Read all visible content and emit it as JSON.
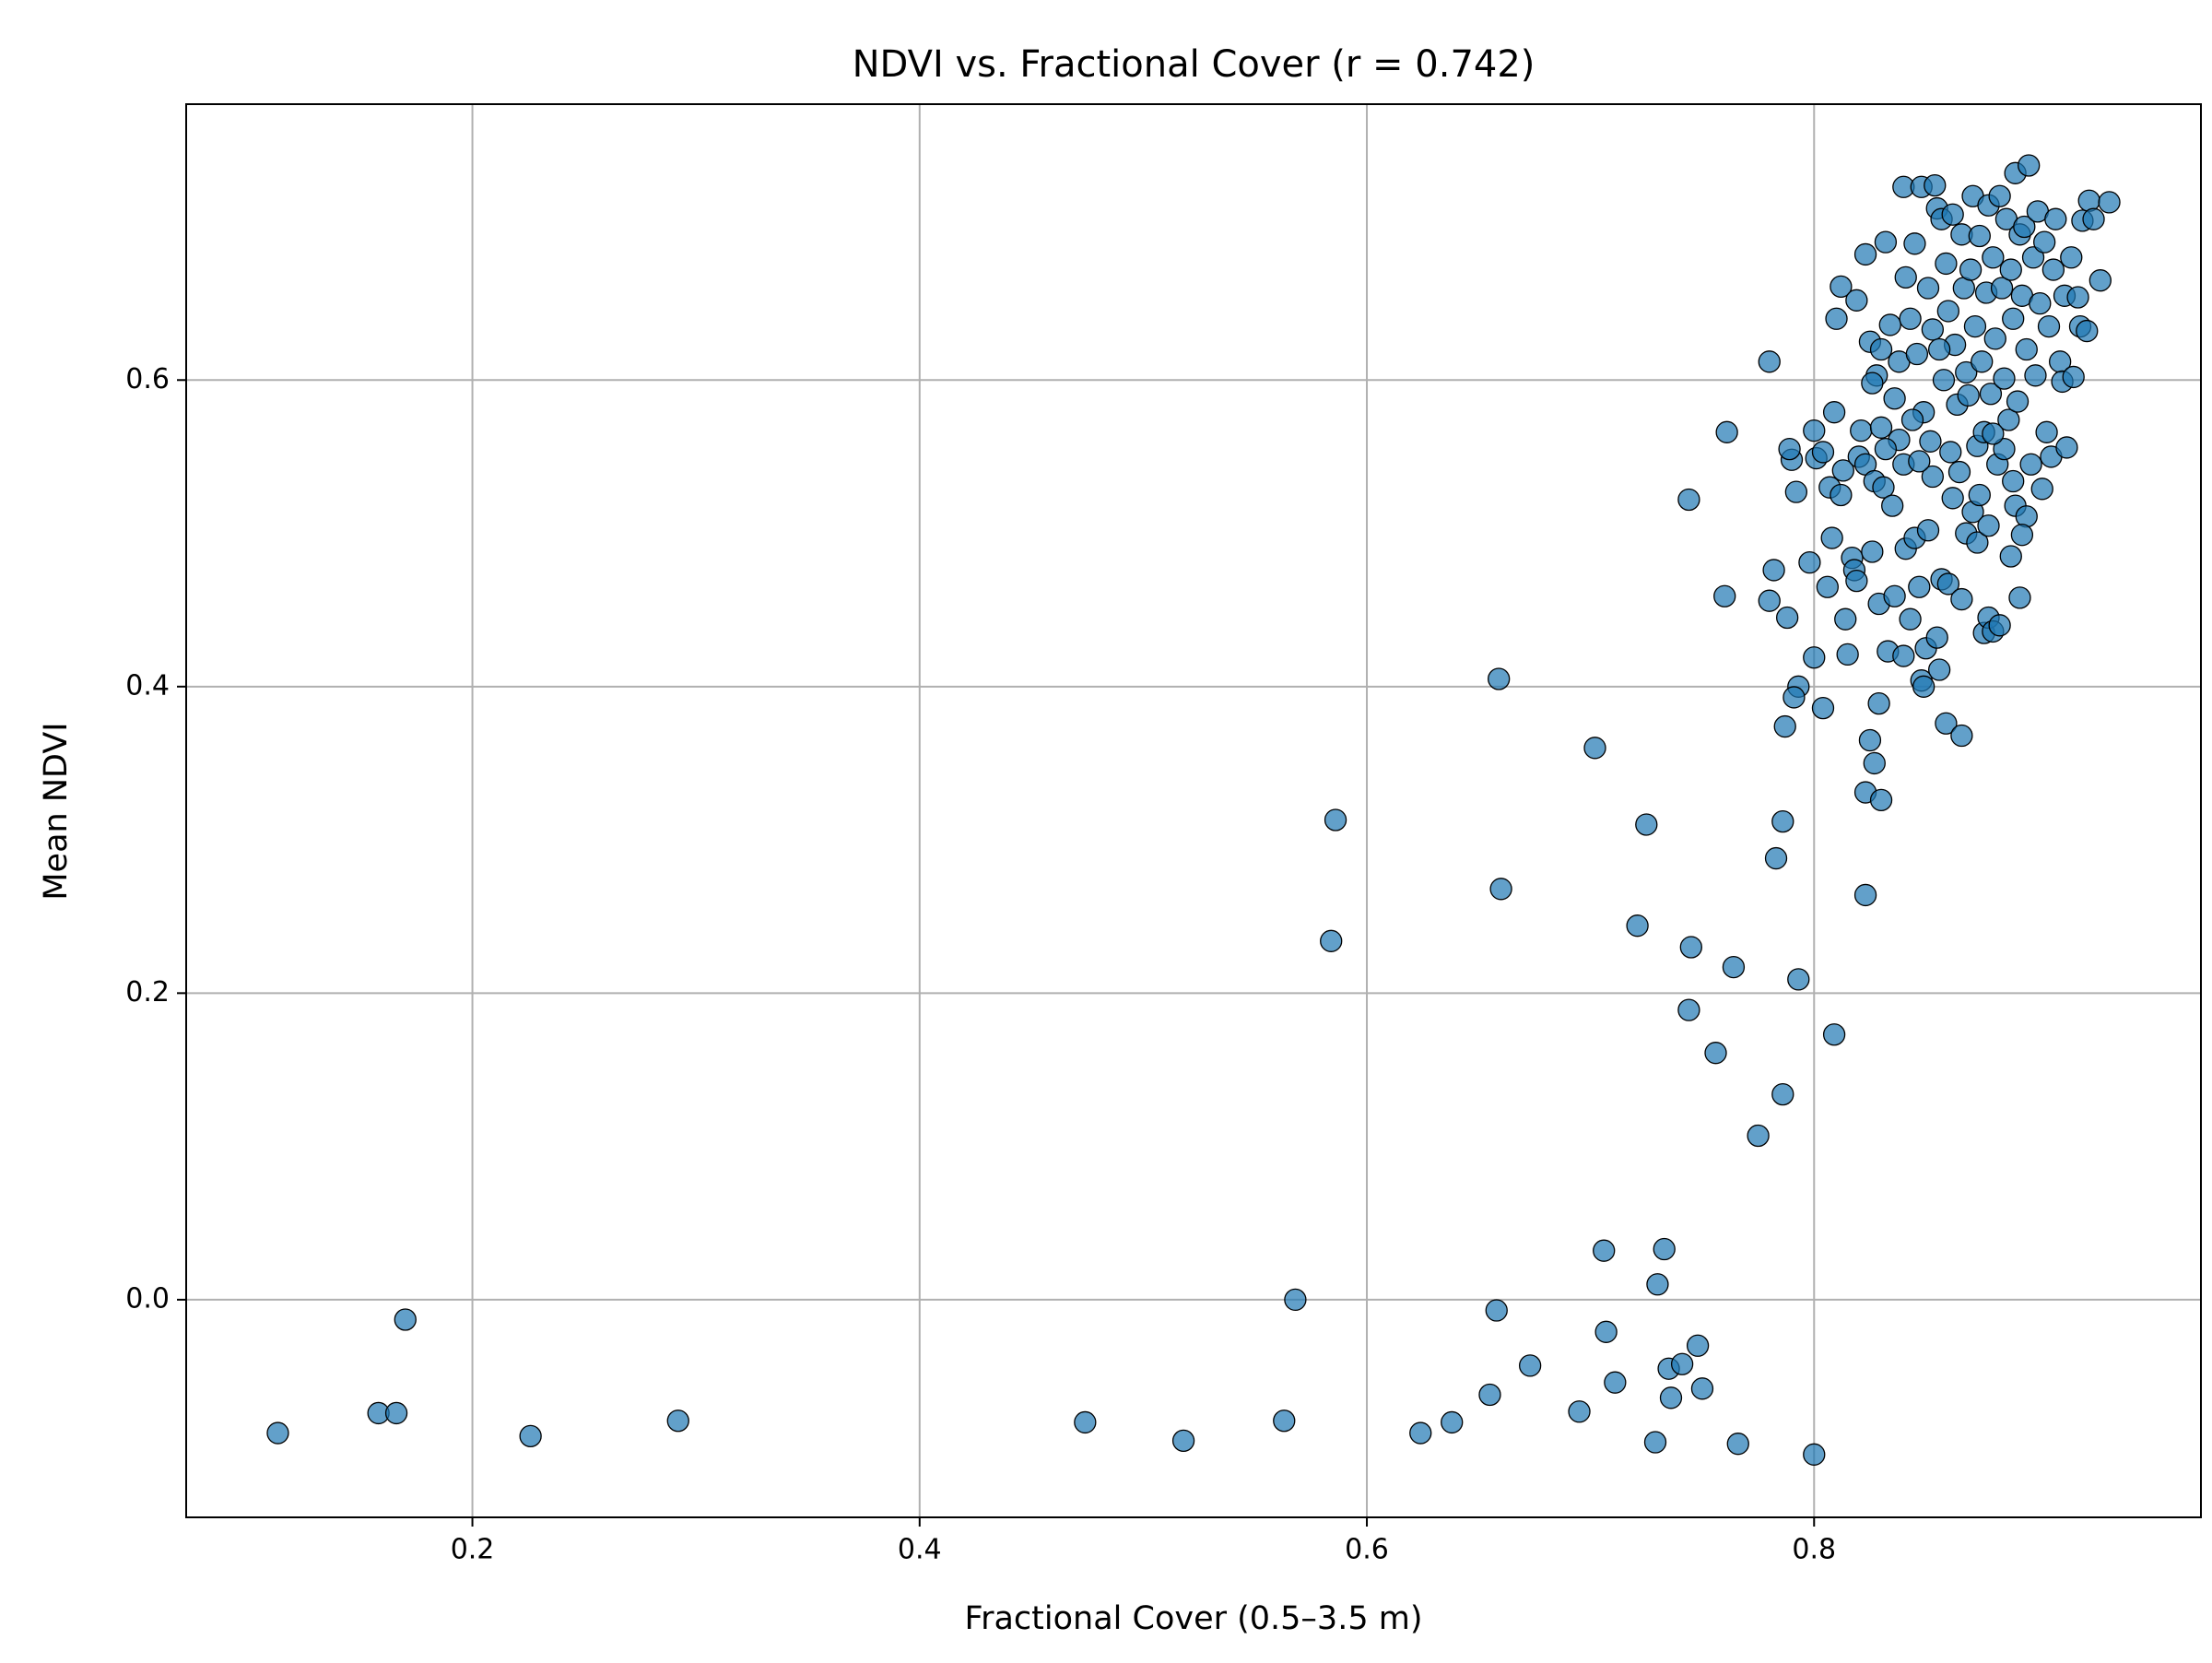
{
  "chart_data": {
    "type": "scatter",
    "title": "NDVI vs. Fractional Cover (r = 0.742)",
    "x_label": "Fractional Cover (0.5–3.5 m)",
    "y_label": "Mean NDVI",
    "color": "#1f77b4",
    "edge_color": "#000000",
    "grid": true,
    "xlim": [
      0.072,
      0.973
    ],
    "ylim": [
      -0.142,
      0.78
    ],
    "xticks": [
      0.2,
      0.4,
      0.6,
      0.8
    ],
    "yticks": [
      {
        "value": 0,
        "label": "0.0"
      },
      0.2,
      0.4,
      0.6
    ],
    "x": [
      0.113,
      0.158,
      0.166,
      0.17,
      0.226,
      0.292,
      0.474,
      0.518,
      0.563,
      0.568,
      0.584,
      0.586,
      0.624,
      0.638,
      0.655,
      0.658,
      0.659,
      0.66,
      0.673,
      0.695,
      0.702,
      0.706,
      0.707,
      0.711,
      0.721,
      0.725,
      0.729,
      0.73,
      0.733,
      0.735,
      0.736,
      0.741,
      0.744,
      0.744,
      0.745,
      0.748,
      0.75,
      0.756,
      0.761,
      0.76,
      0.764,
      0.766,
      0.775,
      0.78,
      0.783,
      0.786,
      0.786,
      0.787,
      0.793,
      0.8,
      0.809,
      0.823,
      0.823,
      0.825,
      0.827,
      0.83,
      0.829,
      0.859,
      0.866,
      0.793,
      0.791,
      0.8,
      0.804,
      0.78,
      0.782,
      0.788,
      0.79,
      0.789,
      0.792,
      0.798,
      0.8,
      0.801,
      0.804,
      0.806,
      0.807,
      0.808,
      0.809,
      0.812,
      0.813,
      0.814,
      0.815,
      0.817,
      0.818,
      0.819,
      0.82,
      0.821,
      0.823,
      0.826,
      0.827,
      0.829,
      0.83,
      0.831,
      0.833,
      0.835,
      0.836,
      0.838,
      0.84,
      0.84,
      0.841,
      0.843,
      0.845,
      0.847,
      0.848,
      0.849,
      0.85,
      0.851,
      0.853,
      0.855,
      0.856,
      0.857,
      0.86,
      0.862,
      0.866,
      0.868,
      0.871,
      0.873,
      0.876,
      0.878,
      0.88,
      0.883,
      0.888,
      0.89,
      0.892,
      0.895,
      0.893,
      0.812,
      0.81,
      0.819,
      0.823,
      0.825,
      0.828,
      0.83,
      0.832,
      0.834,
      0.836,
      0.838,
      0.84,
      0.841,
      0.843,
      0.845,
      0.846,
      0.848,
      0.849,
      0.851,
      0.853,
      0.854,
      0.855,
      0.857,
      0.858,
      0.859,
      0.86,
      0.862,
      0.863,
      0.864,
      0.866,
      0.867,
      0.868,
      0.87,
      0.871,
      0.872,
      0.873,
      0.874,
      0.875,
      0.876,
      0.877,
      0.878,
      0.879,
      0.88,
      0.881,
      0.882,
      0.883,
      0.884,
      0.885,
      0.886,
      0.887,
      0.888,
      0.889,
      0.89,
      0.891,
      0.892,
      0.893,
      0.894,
      0.895,
      0.896,
      0.897,
      0.898,
      0.899,
      0.9,
      0.901,
      0.902,
      0.903,
      0.904,
      0.905,
      0.906,
      0.907,
      0.908,
      0.91,
      0.911,
      0.912,
      0.913,
      0.915,
      0.916,
      0.918,
      0.919,
      0.92,
      0.922,
      0.923,
      0.925,
      0.928,
      0.932,
      0.826,
      0.832,
      0.844,
      0.847,
      0.852,
      0.856,
      0.861,
      0.865,
      0.869,
      0.874,
      0.878,
      0.885,
      0.889,
      0.88
    ],
    "values": [
      -0.087,
      -0.074,
      -0.074,
      -0.013,
      -0.089,
      -0.079,
      -0.08,
      -0.092,
      -0.079,
      0.0,
      0.234,
      0.313,
      -0.087,
      -0.08,
      -0.062,
      -0.007,
      0.405,
      0.268,
      -0.043,
      -0.073,
      0.36,
      0.032,
      -0.021,
      -0.054,
      0.244,
      0.31,
      -0.093,
      0.01,
      0.033,
      -0.045,
      -0.064,
      -0.042,
      0.522,
      0.189,
      0.23,
      -0.03,
      -0.058,
      0.161,
      0.566,
      0.459,
      0.217,
      -0.094,
      0.107,
      0.612,
      0.288,
      0.312,
      0.134,
      0.374,
      0.209,
      -0.101,
      0.173,
      0.264,
      0.331,
      0.365,
      0.35,
      0.326,
      0.389,
      0.376,
      0.368,
      0.4,
      0.393,
      0.419,
      0.386,
      0.456,
      0.476,
      0.445,
      0.548,
      0.555,
      0.527,
      0.481,
      0.567,
      0.549,
      0.553,
      0.465,
      0.53,
      0.497,
      0.579,
      0.525,
      0.541,
      0.444,
      0.421,
      0.484,
      0.476,
      0.469,
      0.55,
      0.567,
      0.545,
      0.488,
      0.534,
      0.454,
      0.569,
      0.53,
      0.423,
      0.518,
      0.459,
      0.561,
      0.42,
      0.545,
      0.49,
      0.444,
      0.497,
      0.465,
      0.404,
      0.4,
      0.425,
      0.502,
      0.537,
      0.432,
      0.411,
      0.47,
      0.467,
      0.523,
      0.457,
      0.5,
      0.514,
      0.494,
      0.435,
      0.445,
      0.436,
      0.44,
      0.485,
      0.518,
      0.458,
      0.511,
      0.499,
      0.661,
      0.64,
      0.652,
      0.682,
      0.625,
      0.603,
      0.62,
      0.69,
      0.636,
      0.588,
      0.612,
      0.726,
      0.667,
      0.64,
      0.689,
      0.617,
      0.726,
      0.579,
      0.66,
      0.633,
      0.727,
      0.712,
      0.705,
      0.6,
      0.676,
      0.645,
      0.708,
      0.623,
      0.584,
      0.695,
      0.66,
      0.605,
      0.672,
      0.72,
      0.635,
      0.557,
      0.694,
      0.612,
      0.566,
      0.657,
      0.714,
      0.591,
      0.68,
      0.627,
      0.545,
      0.72,
      0.66,
      0.601,
      0.705,
      0.574,
      0.672,
      0.64,
      0.735,
      0.586,
      0.695,
      0.655,
      0.7,
      0.62,
      0.74,
      0.545,
      0.68,
      0.603,
      0.71,
      0.65,
      0.529,
      0.69,
      0.566,
      0.635,
      0.55,
      0.672,
      0.705,
      0.612,
      0.599,
      0.655,
      0.556,
      0.68,
      0.602,
      0.654,
      0.635,
      0.704,
      0.632,
      0.717,
      0.705,
      0.665,
      0.716,
      0.598,
      0.555,
      0.574,
      0.547,
      0.56,
      0.62,
      0.553,
      0.54,
      0.59,
      0.525,
      0.505,
      0.555,
      0.534,
      0.565
    ]
  }
}
